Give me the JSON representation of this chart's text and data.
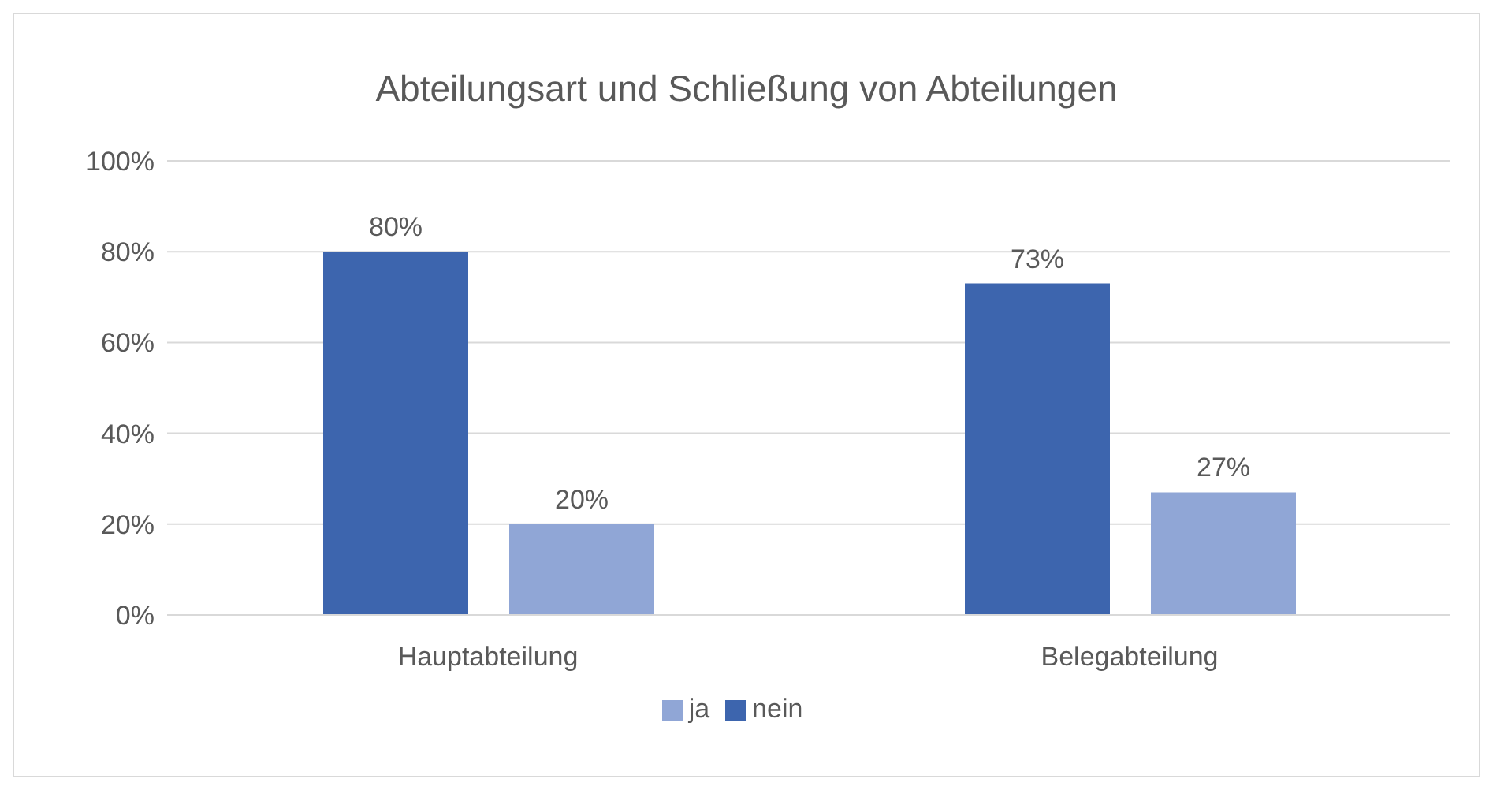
{
  "chart_data": {
    "type": "bar",
    "title": "Abteilungsart und Schließung von Abteilungen",
    "categories": [
      "Hauptabteilung",
      "Belegabteilung"
    ],
    "series": [
      {
        "name": "nein",
        "color": "#3d65ae",
        "values": [
          80,
          73
        ],
        "value_labels": [
          "80%",
          "73%"
        ]
      },
      {
        "name": "ja",
        "color": "#90a6d6",
        "values": [
          20,
          27
        ],
        "value_labels": [
          "20%",
          "27%"
        ]
      }
    ],
    "ylim": [
      0,
      100
    ],
    "yticks": [
      {
        "value": 0,
        "label": "0%"
      },
      {
        "value": 20,
        "label": "20%"
      },
      {
        "value": 40,
        "label": "40%"
      },
      {
        "value": 60,
        "label": "60%"
      },
      {
        "value": 80,
        "label": "80%"
      },
      {
        "value": 100,
        "label": "100%"
      }
    ],
    "grid": "y",
    "legend": "bottom"
  }
}
